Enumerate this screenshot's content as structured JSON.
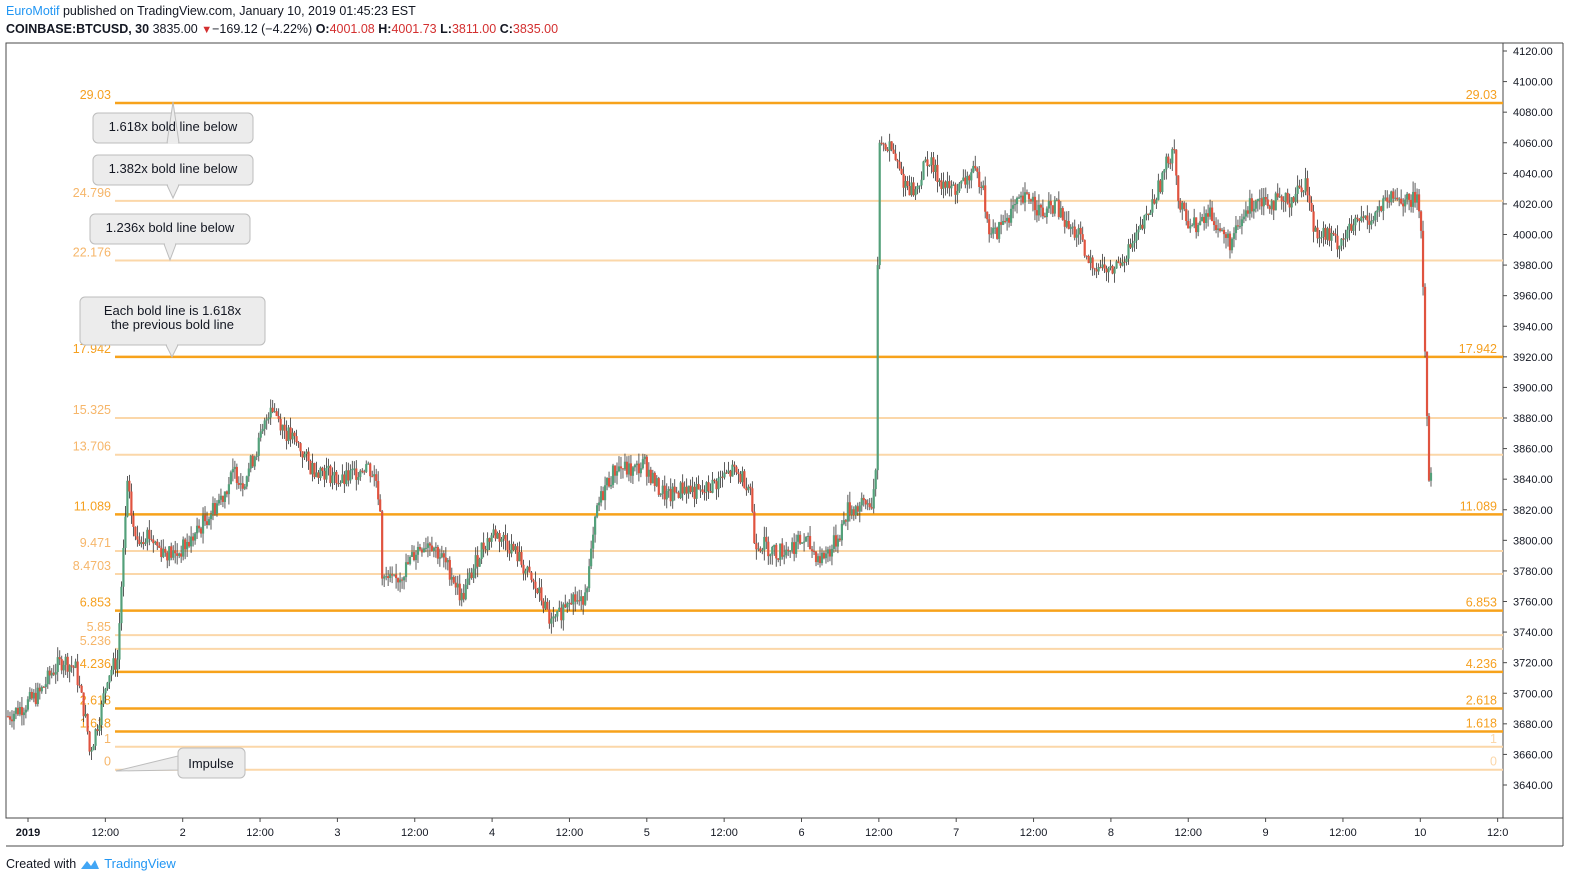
{
  "header": {
    "author": "EuroMotif",
    "published_text": " published on TradingView.com, January 10, 2019 01:45:23 EST",
    "symbol": "COINBASE:BTCUSD, 30",
    "last": "3835.00",
    "change_arrow": "▼",
    "change": "−169.12 (−4.22%)",
    "o_label": "O:",
    "o_value": "4001.08",
    "h_label": "H:",
    "h_value": "4001.73",
    "l_label": "L:",
    "l_value": "3811.00",
    "c_label": "C:",
    "c_value": "3835.00"
  },
  "footer": {
    "created_with": "Created with",
    "brand": "TradingView"
  },
  "colors": {
    "up": "#53a07a",
    "down": "#e0533f",
    "fib_bold": "#f7a21b",
    "fib_light": "#fbd7a9",
    "axis": "#4a4a4a"
  },
  "chart_data": {
    "type": "candlestick",
    "symbol": "COINBASE:BTCUSD",
    "interval": "30",
    "ylim": [
      3620,
      4130
    ],
    "y_ticks": [
      "4120.00",
      "4100.00",
      "4080.00",
      "4060.00",
      "4040.00",
      "4020.00",
      "4000.00",
      "3980.00",
      "3960.00",
      "3940.00",
      "3920.00",
      "3900.00",
      "3880.00",
      "3860.00",
      "3840.00",
      "3820.00",
      "3800.00",
      "3780.00",
      "3760.00",
      "3740.00",
      "3720.00",
      "3700.00",
      "3680.00",
      "3660.00",
      "3640.00"
    ],
    "x_ticks": [
      "2019",
      "12:00",
      "2",
      "12:00",
      "3",
      "12:00",
      "4",
      "12:00",
      "5",
      "12:00",
      "6",
      "12:00",
      "7",
      "12:00",
      "8",
      "12:00",
      "9",
      "12:00",
      "10",
      "12:0"
    ],
    "fib_levels": [
      {
        "ratio": "0",
        "value": 3650,
        "bold": false,
        "right_label": "0"
      },
      {
        "ratio": "1",
        "value": 3665,
        "bold": false,
        "right_label": "1"
      },
      {
        "ratio": "1.618",
        "value": 3675,
        "bold": true,
        "right_label": "1.618"
      },
      {
        "ratio": "2.618",
        "value": 3690,
        "bold": true,
        "right_label": "2.618"
      },
      {
        "ratio": "4.236",
        "value": 3714,
        "bold": true,
        "right_label": "4.236"
      },
      {
        "ratio": "5.236",
        "value": 3729,
        "bold": false,
        "right_label": ""
      },
      {
        "ratio": "5.85",
        "value": 3738,
        "bold": false,
        "right_label": ""
      },
      {
        "ratio": "6.853",
        "value": 3754,
        "bold": true,
        "right_label": "6.853"
      },
      {
        "ratio": "8.4703",
        "value": 3778,
        "bold": false,
        "right_label": ""
      },
      {
        "ratio": "9.471",
        "value": 3793,
        "bold": false,
        "right_label": ""
      },
      {
        "ratio": "11.089",
        "value": 3817,
        "bold": true,
        "right_label": "11.089"
      },
      {
        "ratio": "13.706",
        "value": 3856,
        "bold": false,
        "right_label": ""
      },
      {
        "ratio": "15.325",
        "value": 3880,
        "bold": false,
        "right_label": ""
      },
      {
        "ratio": "17.942",
        "value": 3920,
        "bold": true,
        "right_label": "17.942"
      },
      {
        "ratio": "22.176",
        "value": 3983,
        "bold": false,
        "right_label": ""
      },
      {
        "ratio": "24.796",
        "value": 4022,
        "bold": false,
        "right_label": ""
      },
      {
        "ratio": "29.03",
        "value": 4086,
        "bold": true,
        "right_label": "29.03"
      }
    ],
    "annotations": [
      {
        "text": "1.618x bold line below",
        "points_to": "29.03"
      },
      {
        "text": "1.382x bold line below",
        "points_to": "24.796"
      },
      {
        "text": "1.236x bold line below",
        "points_to": "22.176"
      },
      {
        "text": "Each bold line is 1.618x\nthe previous bold line",
        "points_to": "17.942"
      },
      {
        "text": "Impulse",
        "points_to": "0"
      }
    ],
    "price_path": [
      [
        0,
        3685
      ],
      [
        8,
        3692
      ],
      [
        16,
        3700
      ],
      [
        22,
        3714
      ],
      [
        28,
        3722
      ],
      [
        34,
        3716
      ],
      [
        38,
        3690
      ],
      [
        40,
        3675
      ],
      [
        41,
        3662
      ],
      [
        43,
        3670
      ],
      [
        47,
        3690
      ],
      [
        50,
        3712
      ],
      [
        53,
        3718
      ],
      [
        55,
        3722
      ],
      [
        58,
        3795
      ],
      [
        60,
        3835
      ],
      [
        64,
        3800
      ],
      [
        70,
        3805
      ],
      [
        76,
        3795
      ],
      [
        84,
        3790
      ],
      [
        92,
        3800
      ],
      [
        100,
        3815
      ],
      [
        108,
        3830
      ],
      [
        114,
        3845
      ],
      [
        118,
        3838
      ],
      [
        122,
        3850
      ],
      [
        128,
        3870
      ],
      [
        132,
        3890
      ],
      [
        136,
        3880
      ],
      [
        140,
        3870
      ],
      [
        146,
        3862
      ],
      [
        152,
        3848
      ],
      [
        160,
        3845
      ],
      [
        168,
        3838
      ],
      [
        175,
        3845
      ],
      [
        180,
        3850
      ],
      [
        185,
        3840
      ],
      [
        187,
        3822
      ],
      [
        188,
        3775
      ],
      [
        194,
        3772
      ],
      [
        200,
        3782
      ],
      [
        206,
        3795
      ],
      [
        212,
        3800
      ],
      [
        218,
        3788
      ],
      [
        223,
        3778
      ],
      [
        228,
        3762
      ],
      [
        232,
        3775
      ],
      [
        238,
        3795
      ],
      [
        244,
        3805
      ],
      [
        250,
        3800
      ],
      [
        256,
        3790
      ],
      [
        262,
        3775
      ],
      [
        268,
        3762
      ],
      [
        273,
        3745
      ],
      [
        276,
        3748
      ],
      [
        282,
        3765
      ],
      [
        288,
        3758
      ],
      [
        292,
        3780
      ],
      [
        296,
        3820
      ],
      [
        300,
        3835
      ],
      [
        306,
        3848
      ],
      [
        314,
        3845
      ],
      [
        320,
        3850
      ],
      [
        326,
        3835
      ],
      [
        332,
        3828
      ],
      [
        340,
        3835
      ],
      [
        348,
        3830
      ],
      [
        356,
        3838
      ],
      [
        364,
        3845
      ],
      [
        370,
        3840
      ],
      [
        373,
        3835
      ],
      [
        375,
        3800
      ],
      [
        380,
        3797
      ],
      [
        386,
        3792
      ],
      [
        392,
        3795
      ],
      [
        400,
        3800
      ],
      [
        408,
        3788
      ],
      [
        414,
        3795
      ],
      [
        418,
        3805
      ],
      [
        422,
        3820
      ],
      [
        428,
        3822
      ],
      [
        434,
        3825
      ],
      [
        436,
        3840
      ],
      [
        437,
        3980
      ],
      [
        438,
        4060
      ],
      [
        444,
        4055
      ],
      [
        450,
        4035
      ],
      [
        456,
        4028
      ],
      [
        462,
        4050
      ],
      [
        466,
        4040
      ],
      [
        472,
        4030
      ],
      [
        478,
        4030
      ],
      [
        484,
        4040
      ],
      [
        490,
        4035
      ],
      [
        492,
        4005
      ],
      [
        496,
        4000
      ],
      [
        502,
        4012
      ],
      [
        508,
        4020
      ],
      [
        514,
        4025
      ],
      [
        520,
        4012
      ],
      [
        526,
        4020
      ],
      [
        532,
        4005
      ],
      [
        538,
        4000
      ],
      [
        542,
        3982
      ],
      [
        548,
        3980
      ],
      [
        554,
        3975
      ],
      [
        560,
        3985
      ],
      [
        566,
        3995
      ],
      [
        572,
        4010
      ],
      [
        578,
        4030
      ],
      [
        582,
        4045
      ],
      [
        586,
        4060
      ],
      [
        588,
        4020
      ],
      [
        592,
        4010
      ],
      [
        598,
        4005
      ],
      [
        604,
        4015
      ],
      [
        610,
        4000
      ],
      [
        614,
        3995
      ],
      [
        618,
        4002
      ],
      [
        622,
        4015
      ],
      [
        628,
        4025
      ],
      [
        634,
        4022
      ],
      [
        640,
        4020
      ],
      [
        646,
        4025
      ],
      [
        652,
        4035
      ],
      [
        656,
        4005
      ],
      [
        662,
        4000
      ],
      [
        668,
        3995
      ],
      [
        674,
        4002
      ],
      [
        680,
        4010
      ],
      [
        686,
        4012
      ],
      [
        692,
        4020
      ],
      [
        698,
        4025
      ],
      [
        704,
        4020
      ],
      [
        708,
        4025
      ],
      [
        710,
        4008
      ],
      [
        714,
        3839
      ]
    ]
  }
}
